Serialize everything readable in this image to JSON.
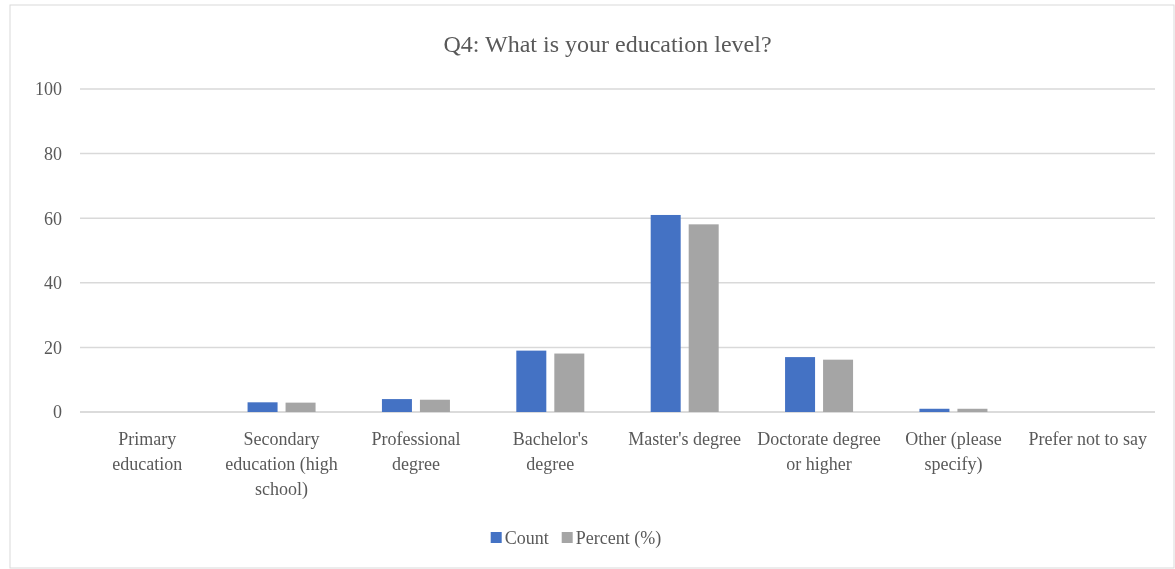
{
  "chart_data": {
    "type": "bar",
    "title": "Q4: What is your education level?",
    "categories": [
      "Primary education",
      "Secondary education (high school)",
      "Professional degree",
      "Bachelor's degree",
      "Master's degree",
      "Doctorate degree or higher",
      "Other (please specify)",
      "Prefer not to say"
    ],
    "series": [
      {
        "name": "Count",
        "color": "#4472c4",
        "values": [
          0,
          3,
          4,
          19,
          61,
          17,
          1,
          0
        ]
      },
      {
        "name": "Percent (%)",
        "color": "#a5a5a5",
        "values": [
          0,
          2.9,
          3.8,
          18.1,
          58.1,
          16.2,
          1,
          0
        ]
      }
    ],
    "ylim": [
      0,
      100
    ],
    "yticks": [
      0,
      20,
      40,
      60,
      80,
      100
    ],
    "grid": "y",
    "legend": "bottom"
  }
}
